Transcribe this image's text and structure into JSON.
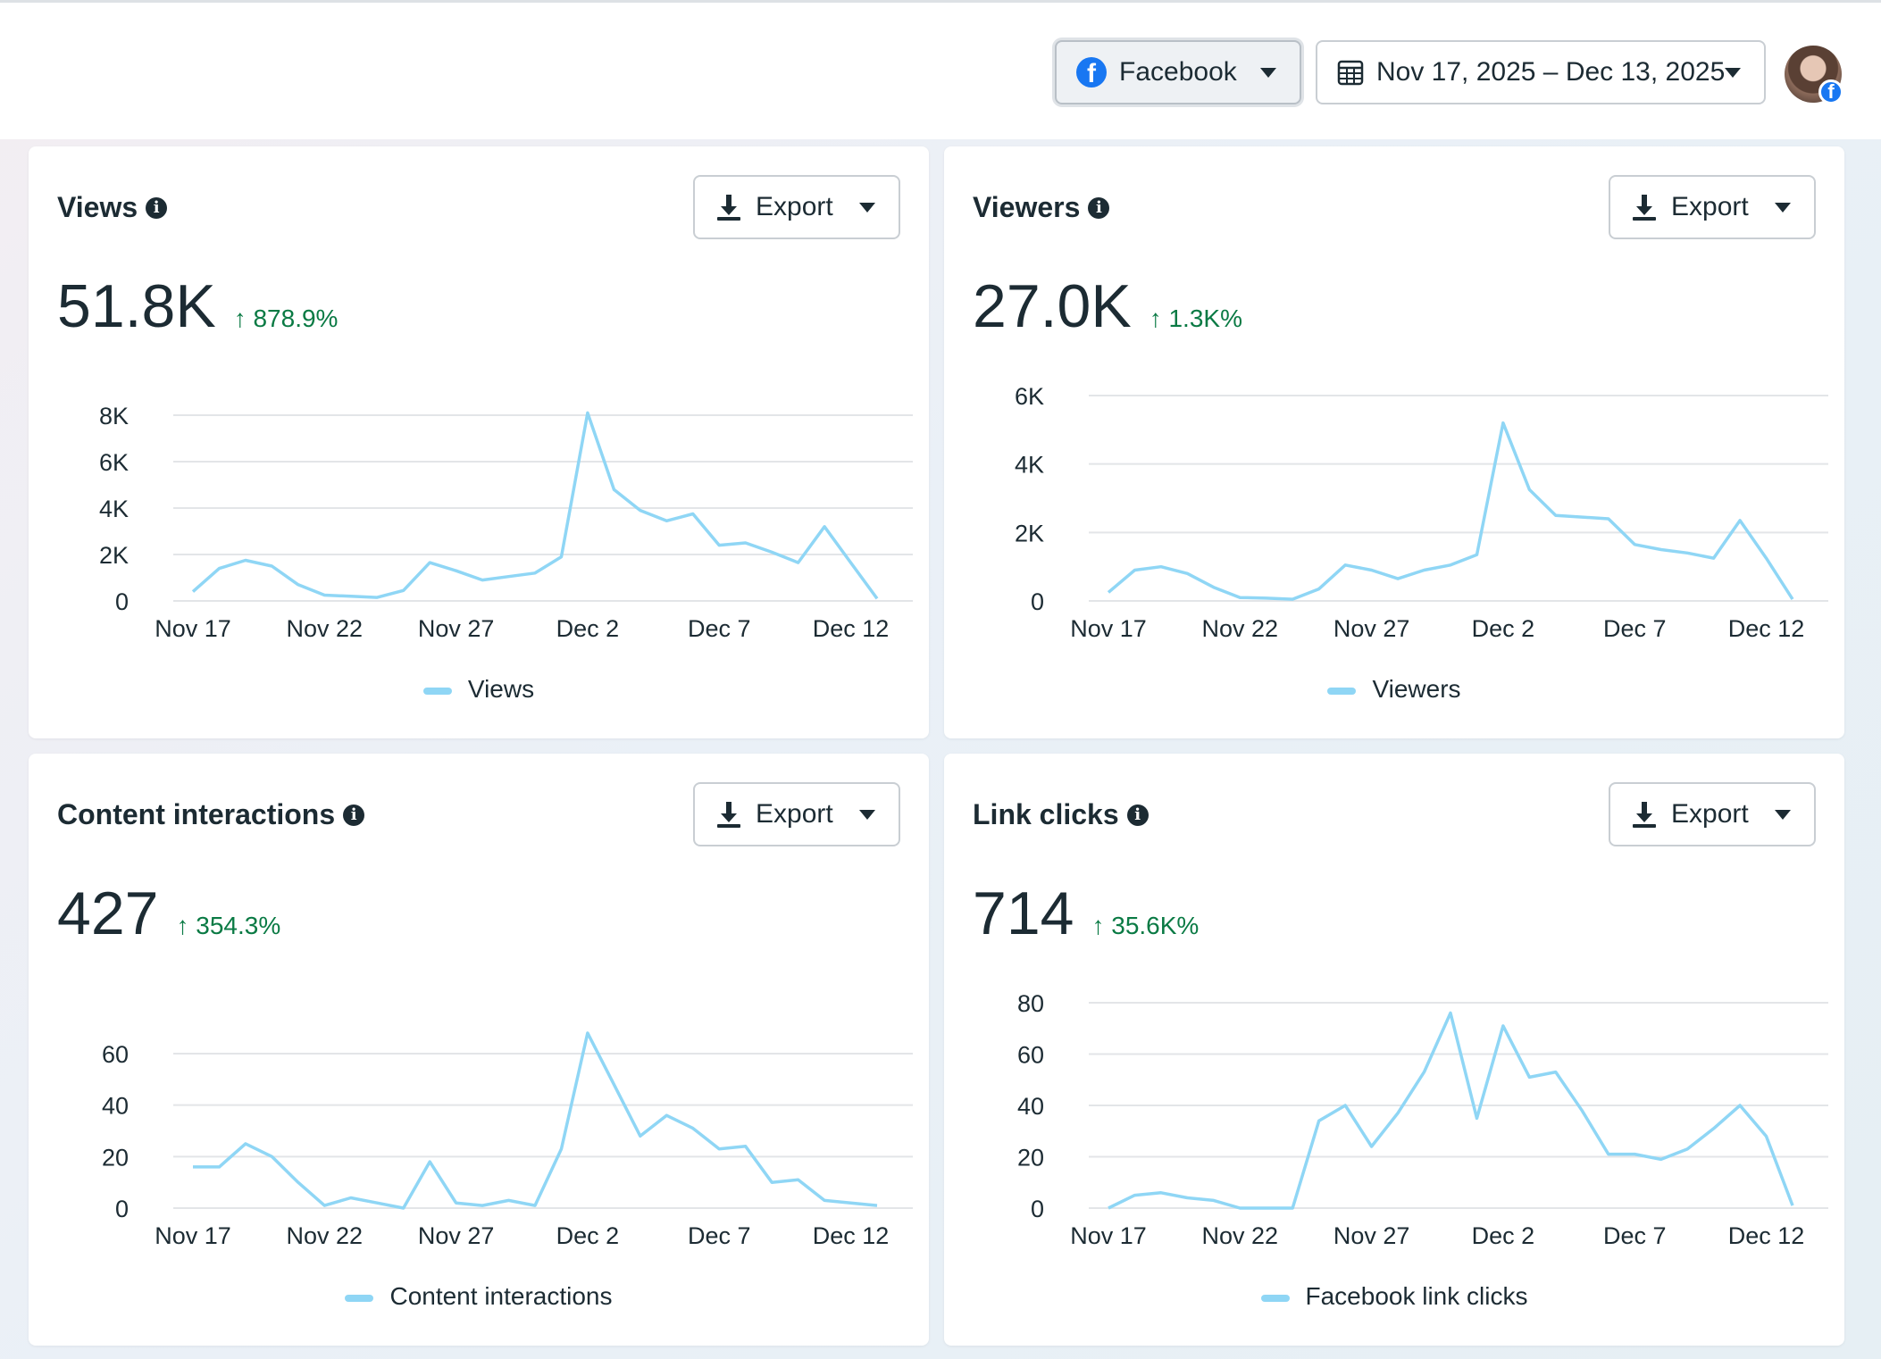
{
  "header": {
    "platform": {
      "label": "Facebook",
      "icon": "facebook-icon"
    },
    "date_range": {
      "label": "Nov 17, 2025 – Dec 13, 2025",
      "icon": "calendar-icon"
    },
    "avatar": {
      "icon": "profile-avatar"
    }
  },
  "colors": {
    "line": "#8fd6f5",
    "grid": "#e3e5e8",
    "delta_up": "#0a7a44",
    "brand": "#1877f2"
  },
  "export_label": "Export",
  "cards": [
    {
      "title": "Views",
      "value": "51.8K",
      "delta": "↑ 878.9%",
      "legend": "Views"
    },
    {
      "title": "Viewers",
      "value": "27.0K",
      "delta": "↑ 1.3K%",
      "legend": "Viewers"
    },
    {
      "title": "Content interactions",
      "value": "427",
      "delta": "↑ 354.3%",
      "legend": "Content interactions"
    },
    {
      "title": "Link clicks",
      "value": "714",
      "delta": "↑ 35.6K%",
      "legend": "Facebook link clicks"
    }
  ],
  "chart_data": [
    {
      "type": "line",
      "x": [
        "Nov 17",
        "Nov 18",
        "Nov 19",
        "Nov 20",
        "Nov 21",
        "Nov 22",
        "Nov 23",
        "Nov 24",
        "Nov 25",
        "Nov 26",
        "Nov 27",
        "Nov 28",
        "Nov 29",
        "Nov 30",
        "Dec 1",
        "Dec 2",
        "Dec 3",
        "Dec 4",
        "Dec 5",
        "Dec 6",
        "Dec 7",
        "Dec 8",
        "Dec 9",
        "Dec 10",
        "Dec 11",
        "Dec 12",
        "Dec 13"
      ],
      "xticks": [
        "Nov 17",
        "Nov 22",
        "Nov 27",
        "Dec 2",
        "Dec 7",
        "Dec 12"
      ],
      "yticks": [
        0,
        2000,
        4000,
        6000,
        8000
      ],
      "ytick_labels": [
        "0",
        "2K",
        "4K",
        "6K",
        "8K"
      ],
      "ylim": [
        0,
        8000
      ],
      "series": [
        {
          "name": "Views",
          "values": [
            400,
            1400,
            1750,
            1500,
            700,
            250,
            200,
            150,
            450,
            1650,
            1300,
            900,
            1050,
            1200,
            1900,
            8100,
            4800,
            3900,
            3450,
            3750,
            2400,
            2500,
            2100,
            1650,
            3200,
            1650,
            100
          ]
        }
      ]
    },
    {
      "type": "line",
      "x": [
        "Nov 17",
        "Nov 18",
        "Nov 19",
        "Nov 20",
        "Nov 21",
        "Nov 22",
        "Nov 23",
        "Nov 24",
        "Nov 25",
        "Nov 26",
        "Nov 27",
        "Nov 28",
        "Nov 29",
        "Nov 30",
        "Dec 1",
        "Dec 2",
        "Dec 3",
        "Dec 4",
        "Dec 5",
        "Dec 6",
        "Dec 7",
        "Dec 8",
        "Dec 9",
        "Dec 10",
        "Dec 11",
        "Dec 12",
        "Dec 13"
      ],
      "xticks": [
        "Nov 17",
        "Nov 22",
        "Nov 27",
        "Dec 2",
        "Dec 7",
        "Dec 12"
      ],
      "yticks": [
        0,
        2000,
        4000,
        6000
      ],
      "ytick_labels": [
        "0",
        "2K",
        "4K",
        "6K"
      ],
      "ylim": [
        0,
        6000
      ],
      "series": [
        {
          "name": "Viewers",
          "values": [
            250,
            900,
            1000,
            800,
            400,
            100,
            80,
            50,
            350,
            1050,
            900,
            650,
            900,
            1050,
            1350,
            5200,
            3250,
            2500,
            2450,
            2400,
            1650,
            1500,
            1400,
            1250,
            2350,
            1250,
            50
          ]
        }
      ]
    },
    {
      "type": "line",
      "x": [
        "Nov 17",
        "Nov 18",
        "Nov 19",
        "Nov 20",
        "Nov 21",
        "Nov 22",
        "Nov 23",
        "Nov 24",
        "Nov 25",
        "Nov 26",
        "Nov 27",
        "Nov 28",
        "Nov 29",
        "Nov 30",
        "Dec 1",
        "Dec 2",
        "Dec 3",
        "Dec 4",
        "Dec 5",
        "Dec 6",
        "Dec 7",
        "Dec 8",
        "Dec 9",
        "Dec 10",
        "Dec 11",
        "Dec 12",
        "Dec 13"
      ],
      "xticks": [
        "Nov 17",
        "Nov 22",
        "Nov 27",
        "Dec 2",
        "Dec 7",
        "Dec 12"
      ],
      "yticks": [
        0,
        20,
        40,
        60
      ],
      "ytick_labels": [
        "0",
        "20",
        "40",
        "60"
      ],
      "ylim": [
        0,
        60
      ],
      "series": [
        {
          "name": "Content interactions",
          "values": [
            16,
            16,
            25,
            20,
            10,
            1,
            4,
            2,
            0,
            18,
            2,
            1,
            3,
            1,
            23,
            68,
            48,
            28,
            36,
            31,
            23,
            24,
            10,
            11,
            3,
            2,
            1
          ]
        }
      ]
    },
    {
      "type": "line",
      "x": [
        "Nov 17",
        "Nov 18",
        "Nov 19",
        "Nov 20",
        "Nov 21",
        "Nov 22",
        "Nov 23",
        "Nov 24",
        "Nov 25",
        "Nov 26",
        "Nov 27",
        "Nov 28",
        "Nov 29",
        "Nov 30",
        "Dec 1",
        "Dec 2",
        "Dec 3",
        "Dec 4",
        "Dec 5",
        "Dec 6",
        "Dec 7",
        "Dec 8",
        "Dec 9",
        "Dec 10",
        "Dec 11",
        "Dec 12",
        "Dec 13"
      ],
      "xticks": [
        "Nov 17",
        "Nov 22",
        "Nov 27",
        "Dec 2",
        "Dec 7",
        "Dec 12"
      ],
      "yticks": [
        0,
        20,
        40,
        60,
        80
      ],
      "ytick_labels": [
        "0",
        "20",
        "40",
        "60",
        "80"
      ],
      "ylim": [
        0,
        80
      ],
      "series": [
        {
          "name": "Facebook link clicks",
          "values": [
            0,
            5,
            6,
            4,
            3,
            0,
            0,
            0,
            34,
            40,
            24,
            37,
            53,
            76,
            35,
            71,
            51,
            53,
            38,
            21,
            21,
            19,
            23,
            31,
            40,
            28,
            1
          ]
        }
      ]
    }
  ]
}
